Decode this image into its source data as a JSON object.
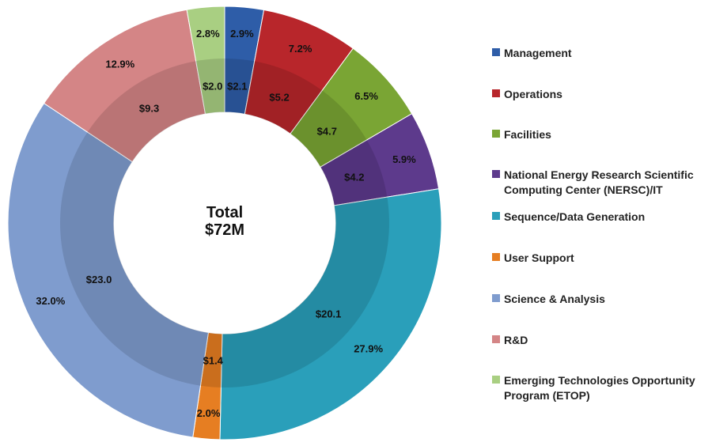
{
  "chart_data": {
    "type": "donut",
    "center_label": {
      "line1": "Total",
      "line2": "$72M"
    },
    "series": [
      {
        "name": "Management",
        "color": "#2E5DA8",
        "percent": 2.9,
        "value": 2.1,
        "percent_label": "2.9%",
        "value_label": "$2.1"
      },
      {
        "name": "Operations",
        "color": "#B8262B",
        "percent": 7.2,
        "value": 5.2,
        "percent_label": "7.2%",
        "value_label": "$5.2"
      },
      {
        "name": "Facilities",
        "color": "#7AA534",
        "percent": 6.5,
        "value": 4.7,
        "percent_label": "6.5%",
        "value_label": "$4.7"
      },
      {
        "name": "National Energy Research Scientific\nComputing Center (NERSC)/IT",
        "color": "#5D3A8C",
        "percent": 5.9,
        "value": 4.2,
        "percent_label": "5.9%",
        "value_label": "$4.2"
      },
      {
        "name": "Sequence/Data Generation",
        "color": "#2A9FBA",
        "percent": 27.9,
        "value": 20.1,
        "percent_label": "27.9%",
        "value_label": "$20.1"
      },
      {
        "name": "User Support",
        "color": "#E67E22",
        "percent": 2.0,
        "value": 1.4,
        "percent_label": "2.0%",
        "value_label": "$1.4"
      },
      {
        "name": "Science & Analysis",
        "color": "#7F9CCE",
        "percent": 32.0,
        "value": 23.0,
        "percent_label": "32.0%",
        "value_label": "$23.0"
      },
      {
        "name": "R&D",
        "color": "#D48586",
        "percent": 12.9,
        "value": 9.3,
        "percent_label": "12.9%",
        "value_label": "$9.3"
      },
      {
        "name": "Emerging Technologies Opportunity\nProgram (ETOP)",
        "color": "#A9CF82",
        "percent": 2.8,
        "value": 2.0,
        "percent_label": "2.8%",
        "value_label": "$2.0"
      }
    ]
  }
}
